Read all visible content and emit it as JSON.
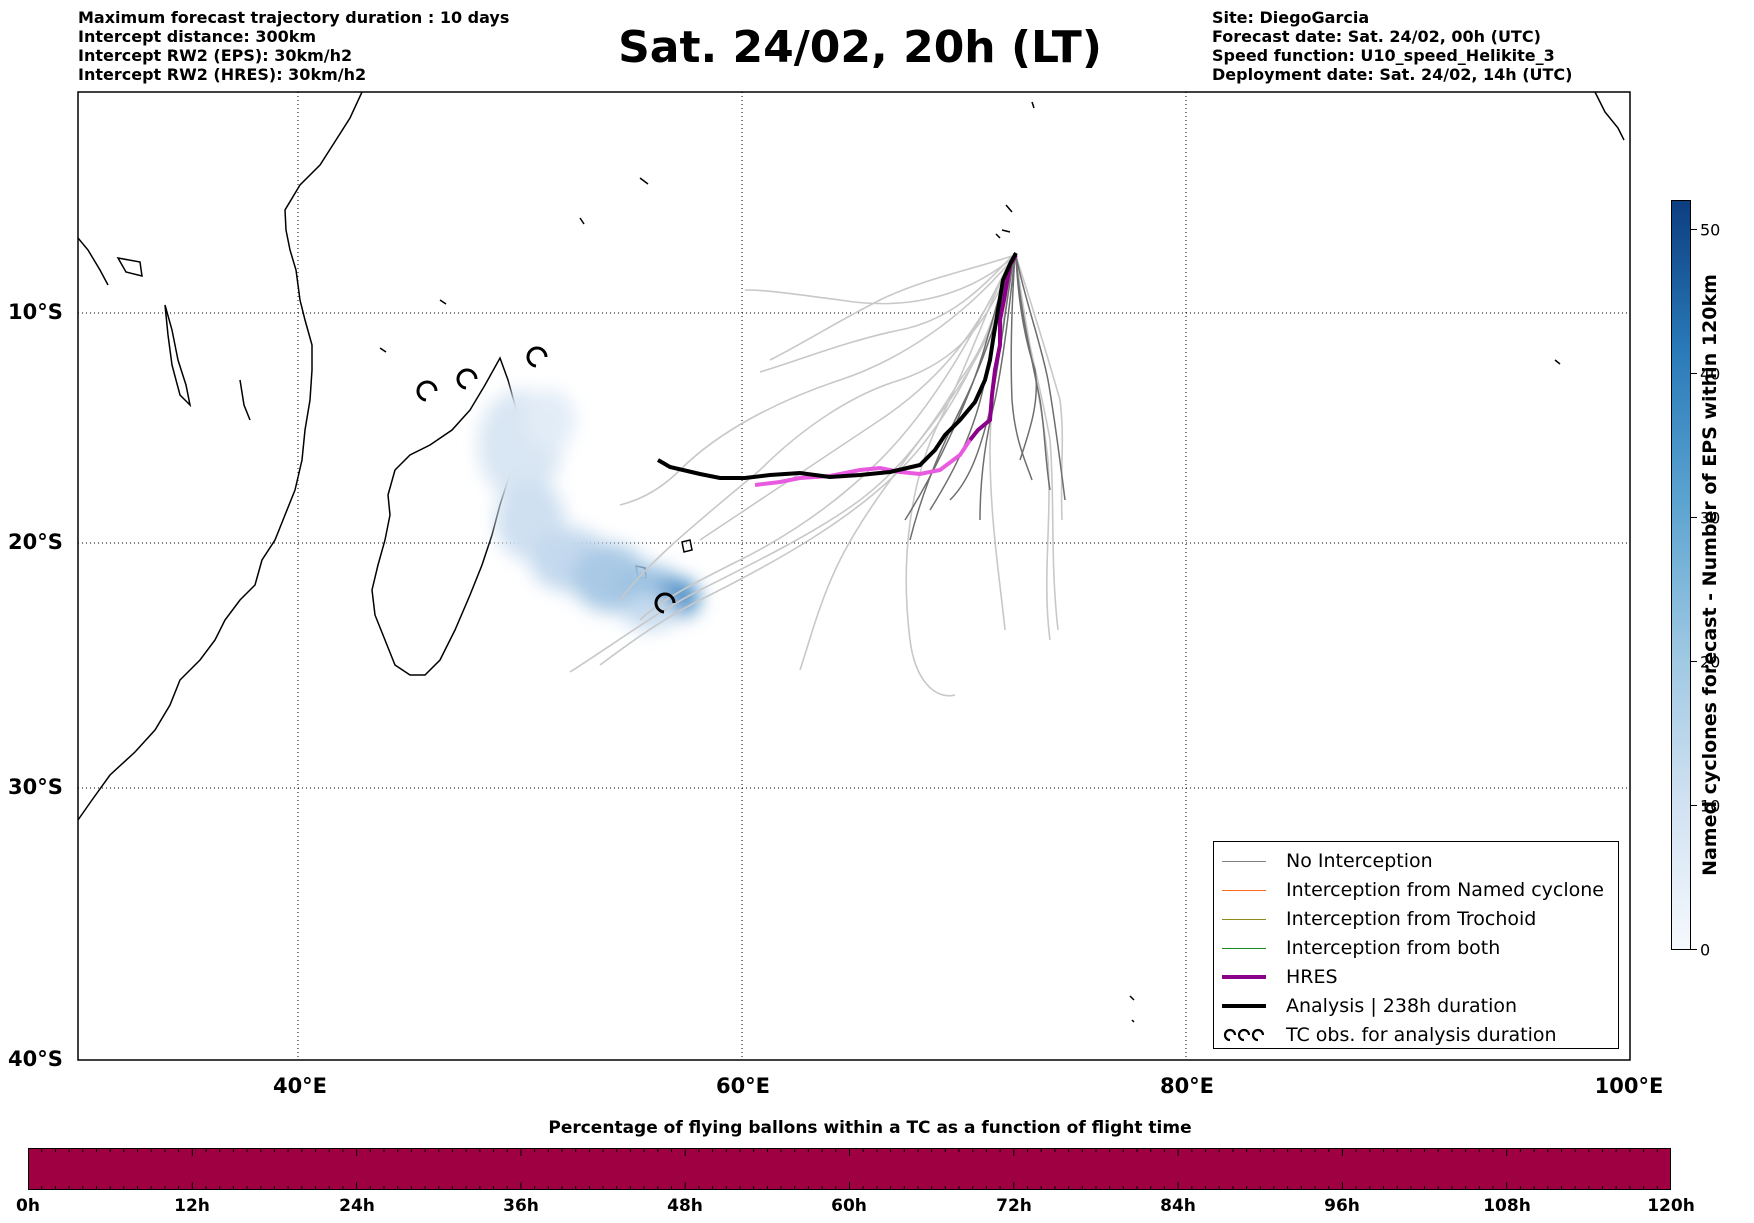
{
  "header": {
    "left": [
      "Maximum forecast trajectory duration : 10 days",
      "Intercept distance: 300km",
      "Intercept RW2 (EPS):  30km/h2",
      "Intercept RW2 (HRES): 30km/h2"
    ],
    "title": "Sat. 24/02, 20h (LT)",
    "right": [
      "Site: DiegoGarcia",
      "Forecast date: Sat. 24/02, 00h (UTC)",
      "Speed function: U10_speed_Helikite_3",
      "Deployment date: Sat. 24/02, 14h (UTC)"
    ]
  },
  "map": {
    "lon_range": [
      30,
      100
    ],
    "lat_range": [
      -40,
      0
    ],
    "lat_labels": [
      "10°S",
      "20°S",
      "30°S",
      "40°S"
    ],
    "lon_labels": [
      "40°E",
      "60°E",
      "80°E",
      "100°E"
    ],
    "grid": "dotted",
    "colors": {
      "no_interception": "#808080",
      "named_cyclone": "#ff6a1a",
      "trochoid": "#8a8a1a",
      "both": "#1a8a1a",
      "hres": "#8b008b",
      "analysis": "#000000",
      "cyclone_density": "#4a90c8"
    }
  },
  "legend": {
    "items": [
      {
        "label": "No Interception",
        "color": "#808080"
      },
      {
        "label": "Interception from Named cyclone",
        "color": "#ff6a1a"
      },
      {
        "label": "Interception from Trochoid",
        "color": "#8a8a1a"
      },
      {
        "label": "Interception from both",
        "color": "#1a8a1a"
      },
      {
        "label": "HRES",
        "color": "#8b008b"
      },
      {
        "label": "Analysis | 238h duration",
        "color": "#000000"
      },
      {
        "label": "TC obs. for analysis duration",
        "icon": "cyclone-symbol-icon"
      }
    ]
  },
  "colorbar": {
    "title": "Named cyclones forecast - Number of EPS within 120km",
    "ticks": [
      "0",
      "10",
      "20",
      "30",
      "40",
      "50"
    ],
    "range": [
      0,
      52
    ]
  },
  "time_bar": {
    "title": "Percentage of flying ballons within a TC as a function of flight time",
    "ticks": [
      "0h",
      "12h",
      "24h",
      "36h",
      "48h",
      "60h",
      "72h",
      "84h",
      "96h",
      "108h",
      "120h"
    ],
    "color": "#9e0041"
  }
}
